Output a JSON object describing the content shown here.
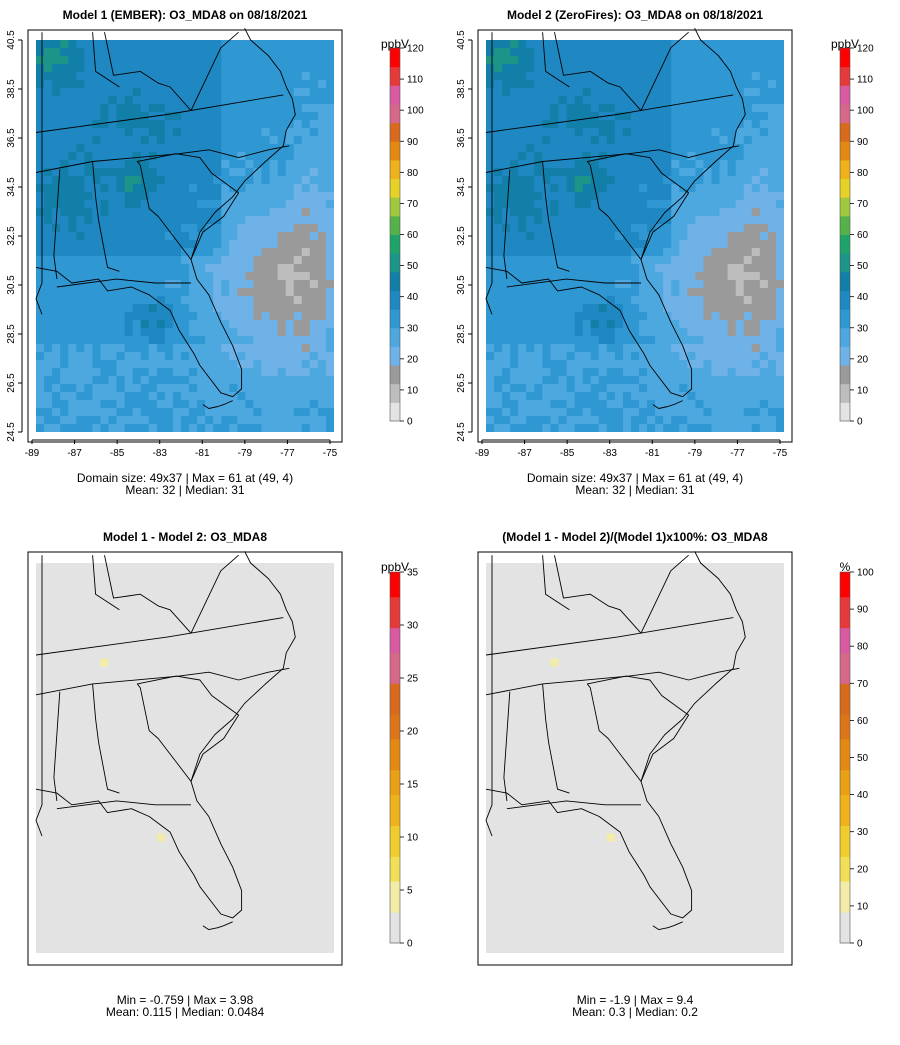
{
  "colors": {
    "abs_scale": [
      "#e3e3e3",
      "#bdbdbd",
      "#9a9a9a",
      "#6fb2e8",
      "#4ea8e0",
      "#2f97d2",
      "#1f88c2",
      "#127fa8",
      "#1c9488",
      "#1fa36a",
      "#55b24a",
      "#a0c83f",
      "#e6d226",
      "#f0b21a",
      "#e48a12",
      "#d86a1e",
      "#d6688a",
      "#d85aa0",
      "#e63a3a",
      "#ff0000"
    ],
    "diff_scale": [
      "#e3e3e3",
      "#f3eca8",
      "#f2df58",
      "#f0cd2e",
      "#f0b21a",
      "#e9a014",
      "#e48a12",
      "#dd761a",
      "#d86a1e",
      "#d6688a",
      "#d85aa0",
      "#e63a3a",
      "#ff0000"
    ]
  },
  "chart_data": [
    {
      "type": "heatmap",
      "title": "Model 1 (EMBER): O3_MDA8 on 08/18/2021",
      "x_ticks": [
        "-89",
        "-87",
        "-85",
        "-83",
        "-81",
        "-79",
        "-77",
        "-75"
      ],
      "y_ticks": [
        "24.5",
        "26.5",
        "28.5",
        "30.5",
        "32.5",
        "34.5",
        "36.5",
        "38.5",
        "40.5"
      ],
      "xlim": [
        -89,
        -75
      ],
      "ylim": [
        24.5,
        40.5
      ],
      "legend_unit": "ppbV",
      "legend_ticks": [
        "0",
        "10",
        "20",
        "30",
        "40",
        "50",
        "60",
        "70",
        "80",
        "90",
        "100",
        "110",
        "120"
      ],
      "zlim": [
        0,
        120
      ],
      "stats_line1": "Domain size: 49x37 | Max = 61 at (49, 4)",
      "stats_line2": "Mean: 32 |  Median: 31",
      "field": "ozone",
      "max": 61,
      "mean": 32,
      "median": 31
    },
    {
      "type": "heatmap",
      "title": "Model 2 (ZeroFires): O3_MDA8 on 08/18/2021",
      "x_ticks": [
        "-89",
        "-87",
        "-85",
        "-83",
        "-81",
        "-79",
        "-77",
        "-75"
      ],
      "y_ticks": [
        "24.5",
        "26.5",
        "28.5",
        "30.5",
        "32.5",
        "34.5",
        "36.5",
        "38.5",
        "40.5"
      ],
      "xlim": [
        -89,
        -75
      ],
      "ylim": [
        24.5,
        40.5
      ],
      "legend_unit": "ppbV",
      "legend_ticks": [
        "0",
        "10",
        "20",
        "30",
        "40",
        "50",
        "60",
        "70",
        "80",
        "90",
        "100",
        "110",
        "120"
      ],
      "zlim": [
        0,
        120
      ],
      "stats_line1": "Domain size: 49x37 | Max = 61 at (49, 4)",
      "stats_line2": "Mean: 32 |  Median: 31",
      "field": "ozone",
      "max": 61,
      "mean": 32,
      "median": 31
    },
    {
      "type": "heatmap",
      "title": "Model 1 - Model 2: O3_MDA8",
      "x_ticks": [],
      "y_ticks": [],
      "legend_unit": "ppbV",
      "legend_ticks": [
        "0",
        "5",
        "10",
        "15",
        "20",
        "25",
        "30",
        "35"
      ],
      "zlim": [
        0,
        35
      ],
      "stats_line1": "Min = -0.759 | Max = 3.98",
      "stats_line2": "Mean: 0.115 |  Median: 0.0484",
      "field": "diff",
      "min": -0.759,
      "max": 3.98,
      "mean": 0.115,
      "median": 0.0484
    },
    {
      "type": "heatmap",
      "title": "(Model 1 - Model 2)/(Model 1)x100%: O3_MDA8",
      "x_ticks": [],
      "y_ticks": [],
      "legend_unit": "%",
      "legend_ticks": [
        "0",
        "10",
        "20",
        "30",
        "40",
        "50",
        "60",
        "70",
        "80",
        "90",
        "100"
      ],
      "zlim": [
        0,
        100
      ],
      "stats_line1": "Min = -1.9 | Max = 9.4",
      "stats_line2": "Mean: 0.3 |  Median: 0.2",
      "field": "pct",
      "min": -1.9,
      "max": 9.4,
      "mean": 0.3,
      "median": 0.2
    }
  ]
}
